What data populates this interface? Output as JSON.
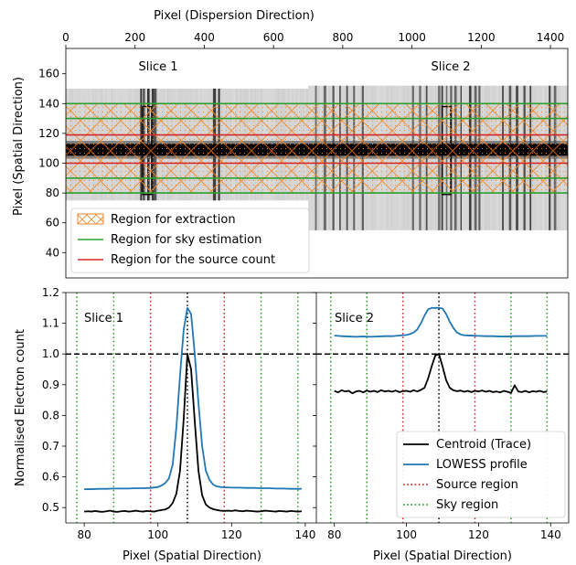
{
  "chart_data": [
    {
      "type": "heatmap",
      "xlabel_top": "Pixel (Dispersion Direction)",
      "ylabel": "Pixel (Spatial Direction)",
      "xlim": [
        0,
        1450
      ],
      "ylim": [
        23,
        177
      ],
      "xticks": [
        0,
        200,
        400,
        600,
        800,
        1000,
        1200,
        1400
      ],
      "yticks": [
        40,
        60,
        80,
        100,
        120,
        140,
        160
      ],
      "annotations": [
        {
          "text": "Slice 1",
          "x": 270,
          "y": 163
        },
        {
          "text": "Slice 2",
          "x": 1110,
          "y": 163
        }
      ],
      "image": {
        "colormap": "gray_r",
        "slice1_x_range": [
          0,
          700
        ],
        "slice1_y_range": [
          75,
          150
        ],
        "slice2_x_range": [
          700,
          1450
        ],
        "slice2_y_range": [
          55,
          152
        ],
        "trace_center_y": 109,
        "trace_halfwidth": 4,
        "dark_columns_slice1": [
          215,
          222,
          235,
          248,
          255,
          425,
          430,
          440
        ],
        "dark_columns_slice2": [
          720,
          745,
          770,
          790,
          810,
          830,
          855,
          1000,
          1020,
          1040,
          1075,
          1085,
          1098,
          1110,
          1122,
          1140,
          1165,
          1180,
          1192,
          1260,
          1280,
          1300,
          1322,
          1340,
          1395,
          1410
        ],
        "boxes": [
          {
            "x0": 222,
            "x1": 248,
            "y0": 79,
            "y1": 138
          },
          {
            "x0": 1087,
            "x1": 1112,
            "y0": 79,
            "y1": 138
          }
        ]
      },
      "extraction_region": [
        80,
        140
      ],
      "sky_lines": [
        80,
        90,
        130,
        140
      ],
      "source_lines": [
        100,
        119
      ],
      "legend": {
        "placement": "lower-left",
        "items": [
          {
            "label": "Region for extraction",
            "color": "#ff7f0e",
            "style": "hatched-patch"
          },
          {
            "label": "Region for sky estimation",
            "color": "#2ca02c",
            "style": "line"
          },
          {
            "label": "Region for the source count",
            "color": "#d62728",
            "style": "line"
          }
        ]
      }
    },
    {
      "type": "line",
      "annotation": "Slice 1",
      "xlabel": "Pixel (Spatial Direction)",
      "ylabel": "Normalised Electron count",
      "xlim": [
        75,
        143
      ],
      "ylim": [
        0.45,
        1.2
      ],
      "xticks": [
        80,
        100,
        120,
        140
      ],
      "yticks": [
        0.5,
        0.6,
        0.7,
        0.8,
        0.9,
        1.0,
        1.1,
        1.2
      ],
      "hline": 1.0,
      "centroid_vline": 108,
      "source_vlines": [
        98,
        118
      ],
      "sky_vlines": [
        78,
        88,
        128,
        138
      ],
      "series": [
        {
          "name": "Centroid (Trace)",
          "color": "#000000",
          "x": [
            80,
            81,
            82,
            83,
            84,
            85,
            86,
            87,
            88,
            89,
            90,
            91,
            92,
            93,
            94,
            95,
            96,
            97,
            98,
            99,
            100,
            101,
            102,
            103,
            104,
            105,
            106,
            107,
            108,
            109,
            110,
            111,
            112,
            113,
            114,
            115,
            116,
            117,
            118,
            119,
            120,
            121,
            122,
            123,
            124,
            125,
            126,
            127,
            128,
            129,
            130,
            131,
            132,
            133,
            134,
            135,
            136,
            137,
            138,
            139
          ],
          "values": [
            0.487,
            0.488,
            0.487,
            0.489,
            0.487,
            0.486,
            0.488,
            0.49,
            0.487,
            0.486,
            0.488,
            0.489,
            0.487,
            0.488,
            0.49,
            0.488,
            0.487,
            0.489,
            0.488,
            0.487,
            0.49,
            0.492,
            0.494,
            0.5,
            0.515,
            0.545,
            0.62,
            0.79,
            1.0,
            0.95,
            0.78,
            0.62,
            0.54,
            0.51,
            0.5,
            0.495,
            0.492,
            0.49,
            0.489,
            0.49,
            0.489,
            0.491,
            0.489,
            0.488,
            0.49,
            0.489,
            0.488,
            0.487,
            0.488,
            0.49,
            0.489,
            0.488,
            0.487,
            0.489,
            0.488,
            0.487,
            0.489,
            0.488,
            0.487,
            0.488
          ]
        },
        {
          "name": "LOWESS profile",
          "color": "#1f77b4",
          "x": [
            80,
            82,
            84,
            86,
            88,
            90,
            92,
            94,
            96,
            98,
            100,
            101,
            102,
            103,
            104,
            105,
            106,
            107,
            108,
            109,
            110,
            111,
            112,
            113,
            114,
            115,
            116,
            117,
            118,
            120,
            122,
            124,
            126,
            128,
            130,
            132,
            134,
            136,
            138,
            139
          ],
          "values": [
            0.56,
            0.56,
            0.561,
            0.561,
            0.562,
            0.562,
            0.562,
            0.563,
            0.563,
            0.564,
            0.567,
            0.572,
            0.58,
            0.595,
            0.64,
            0.76,
            0.93,
            1.08,
            1.15,
            1.13,
            1.0,
            0.84,
            0.7,
            0.62,
            0.59,
            0.575,
            0.569,
            0.567,
            0.566,
            0.565,
            0.565,
            0.564,
            0.564,
            0.563,
            0.563,
            0.562,
            0.562,
            0.561,
            0.561,
            0.561
          ]
        }
      ]
    },
    {
      "type": "line",
      "annotation": "Slice 2",
      "xlabel": "Pixel (Spatial Direction)",
      "xlim": [
        75,
        145
      ],
      "ylim": [
        0.45,
        1.2
      ],
      "xticks": [
        80,
        100,
        120,
        140
      ],
      "hline": 1.0,
      "centroid_vline": 109,
      "source_vlines": [
        99,
        119
      ],
      "sky_vlines": [
        79,
        89,
        129,
        139
      ],
      "legend": {
        "placement": "lower-right",
        "items": [
          {
            "label": "Centroid (Trace)",
            "color": "#000000",
            "style": "solid"
          },
          {
            "label": "LOWESS profile",
            "color": "#1f77b4",
            "style": "solid"
          },
          {
            "label": "Source region",
            "color": "#d62728",
            "style": "dotted"
          },
          {
            "label": "Sky region",
            "color": "#2ca02c",
            "style": "dotted"
          }
        ]
      },
      "series": [
        {
          "name": "Centroid (Trace)",
          "color": "#000000",
          "x": [
            80,
            81,
            82,
            83,
            84,
            85,
            86,
            87,
            88,
            89,
            90,
            91,
            92,
            93,
            94,
            95,
            96,
            97,
            98,
            99,
            100,
            101,
            102,
            103,
            104,
            105,
            106,
            107,
            108,
            109,
            110,
            111,
            112,
            113,
            114,
            115,
            116,
            117,
            118,
            119,
            120,
            121,
            122,
            123,
            124,
            125,
            126,
            127,
            128,
            129,
            130,
            131,
            132,
            133,
            134,
            135,
            136,
            137,
            138,
            139
          ],
          "values": [
            0.88,
            0.875,
            0.882,
            0.878,
            0.88,
            0.872,
            0.878,
            0.88,
            0.875,
            0.881,
            0.877,
            0.88,
            0.876,
            0.882,
            0.878,
            0.88,
            0.877,
            0.881,
            0.876,
            0.879,
            0.88,
            0.877,
            0.882,
            0.878,
            0.883,
            0.89,
            0.92,
            0.96,
            0.995,
            1.0,
            0.96,
            0.915,
            0.89,
            0.882,
            0.879,
            0.881,
            0.877,
            0.88,
            0.876,
            0.88,
            0.878,
            0.881,
            0.877,
            0.88,
            0.876,
            0.878,
            0.875,
            0.88,
            0.877,
            0.873,
            0.898,
            0.878,
            0.876,
            0.88,
            0.875,
            0.879,
            0.877,
            0.88,
            0.876,
            0.878
          ]
        },
        {
          "name": "LOWESS profile",
          "color": "#1f77b4",
          "x": [
            80,
            82,
            84,
            86,
            88,
            90,
            92,
            94,
            96,
            98,
            100,
            101,
            102,
            103,
            104,
            105,
            106,
            107,
            108,
            109,
            110,
            111,
            112,
            113,
            114,
            115,
            116,
            117,
            118,
            120,
            122,
            124,
            126,
            128,
            130,
            132,
            134,
            136,
            138,
            139
          ],
          "values": [
            1.06,
            1.058,
            1.057,
            1.056,
            1.057,
            1.056,
            1.057,
            1.058,
            1.058,
            1.06,
            1.062,
            1.065,
            1.07,
            1.08,
            1.1,
            1.125,
            1.145,
            1.15,
            1.15,
            1.15,
            1.148,
            1.13,
            1.105,
            1.085,
            1.07,
            1.064,
            1.061,
            1.06,
            1.06,
            1.059,
            1.058,
            1.058,
            1.057,
            1.057,
            1.058,
            1.058,
            1.058,
            1.059,
            1.059,
            1.059
          ]
        }
      ]
    }
  ]
}
